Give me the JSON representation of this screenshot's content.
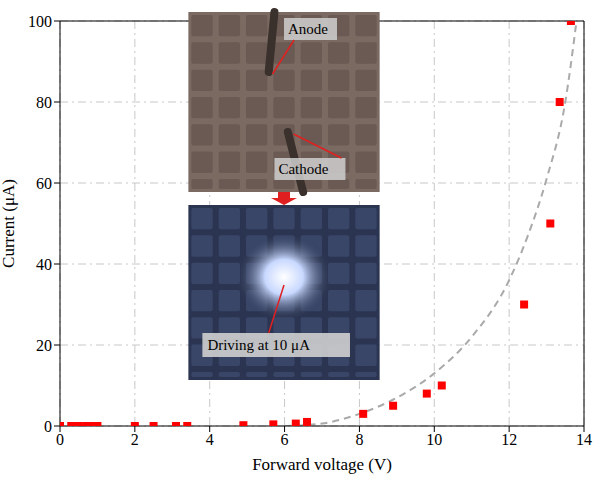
{
  "chart_data": {
    "type": "scatter",
    "x_label": "Forward voltage (V)",
    "y_label": "Current (μA)",
    "xlim": [
      0,
      14
    ],
    "xticks": [
      0,
      2,
      4,
      6,
      8,
      10,
      12,
      14
    ],
    "ylim": [
      0,
      100
    ],
    "yticks": [
      0,
      20,
      40,
      60,
      80,
      100
    ],
    "grid": true,
    "series": [
      {
        "type": "scatter",
        "color": "#ff0000",
        "marker": "square",
        "x": [
          0,
          0.3,
          0.5,
          0.7,
          0.8,
          1.0,
          2.0,
          2.5,
          3.1,
          3.4,
          4.9,
          5.7,
          6.3,
          6.6,
          8.1,
          8.9,
          9.8,
          10.2,
          12.4,
          13.1,
          13.35,
          13.65
        ],
        "values": [
          0,
          0,
          0,
          0,
          0,
          0,
          0,
          0,
          0,
          0,
          0.2,
          0.4,
          0.6,
          1,
          3,
          5,
          8,
          10,
          30,
          50,
          80,
          100
        ]
      },
      {
        "type": "line",
        "color": "#aaaaaa",
        "line_style": "dashed",
        "x": [
          6.0,
          6.5,
          7.0,
          8.0,
          9.0,
          10.0,
          11.0,
          12.0,
          12.5,
          13.0,
          13.5,
          13.8
        ],
        "values": [
          0,
          0.2,
          0.6,
          3,
          7,
          13,
          22,
          36,
          47,
          61,
          80,
          100
        ]
      }
    ],
    "annotations": [
      "Anode",
      "Cathode",
      "Driving at 10 μA"
    ]
  }
}
